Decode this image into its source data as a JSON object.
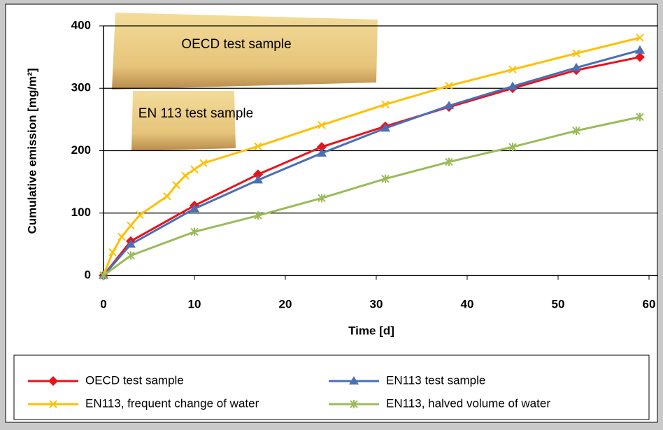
{
  "chart_data": {
    "type": "line",
    "x_label": "Time [d]",
    "y_label": "Cumulative emission [mg/m²]",
    "xlim": [
      0,
      61
    ],
    "xticks": [
      0,
      10,
      20,
      30,
      40,
      50,
      60
    ],
    "ylim": [
      0,
      400
    ],
    "yticks": [
      0,
      100,
      200,
      300,
      400
    ],
    "grid": true,
    "legend": "bottom",
    "annotations": [
      "OECD test sample",
      "EN 113 test sample"
    ],
    "series": [
      {
        "name": "OECD test sample",
        "color": "#e8141b",
        "marker": "diamond",
        "x": [
          0,
          3,
          10,
          17,
          24,
          31,
          38,
          45,
          52,
          59
        ],
        "values": [
          0,
          55,
          112,
          162,
          206,
          239,
          270,
          300,
          329,
          350
        ]
      },
      {
        "name": "EN113 test sample",
        "color": "#4a6fb5",
        "marker": "triangle",
        "x": [
          0,
          3,
          10,
          17,
          24,
          31,
          38,
          45,
          52,
          59
        ],
        "values": [
          0,
          50,
          107,
          153,
          196,
          236,
          272,
          303,
          333,
          361
        ]
      },
      {
        "name": "EN113, frequent change of water",
        "color": "#ffc000",
        "marker": "x",
        "x": [
          0,
          1,
          2,
          3,
          4,
          7,
          8,
          9,
          10,
          11,
          17,
          24,
          31,
          38,
          45,
          52,
          59
        ],
        "values": [
          0,
          37,
          62,
          80,
          97,
          127,
          145,
          160,
          170,
          180,
          207,
          241,
          274,
          304,
          330,
          356,
          381
        ]
      },
      {
        "name": "EN113, halved volume of water",
        "color": "#9bbb59",
        "marker": "star",
        "x": [
          0,
          3,
          10,
          17,
          24,
          31,
          38,
          45,
          52,
          59
        ],
        "values": [
          0,
          32,
          70,
          96,
          124,
          155,
          182,
          206,
          232,
          254
        ]
      }
    ]
  }
}
